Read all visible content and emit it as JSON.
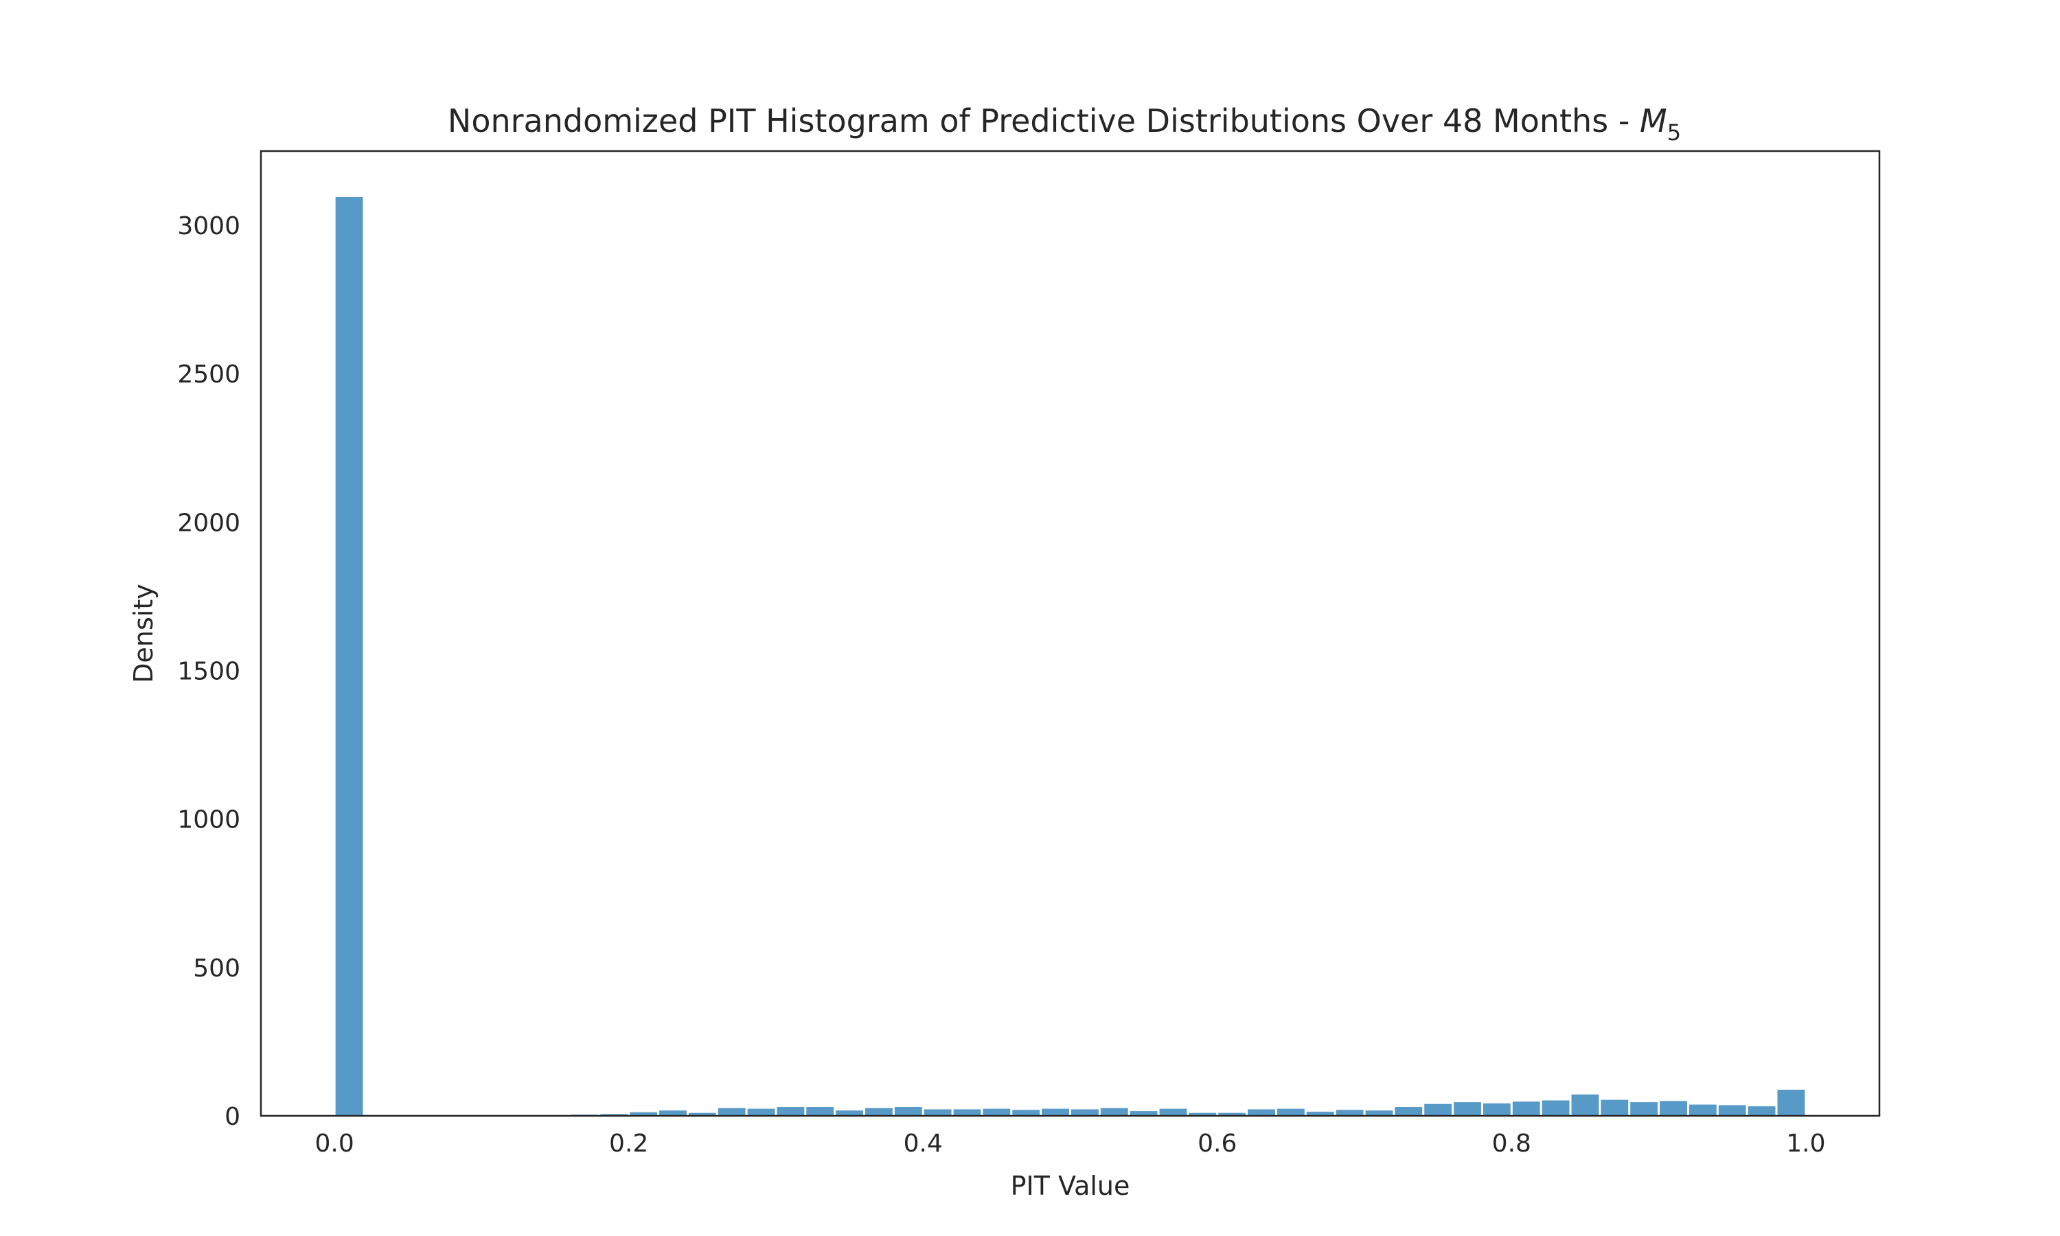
{
  "chart_data": {
    "type": "bar",
    "title": "Nonrandomized PIT Histogram of Predictive Distributions Over 48 Months - ",
    "title_math_base": "M",
    "title_math_sub": "5",
    "xlabel": "PIT Value",
    "ylabel": "Density",
    "xlim": [
      -0.05,
      1.05
    ],
    "ylim": [
      0,
      3250
    ],
    "xticks": [
      0.0,
      0.2,
      0.4,
      0.6,
      0.8,
      1.0
    ],
    "xtick_labels": [
      "0.0",
      "0.2",
      "0.4",
      "0.6",
      "0.8",
      "1.0"
    ],
    "yticks": [
      0,
      500,
      1000,
      1500,
      2000,
      2500,
      3000
    ],
    "ytick_labels": [
      "0",
      "500",
      "1000",
      "1500",
      "2000",
      "2500",
      "3000"
    ],
    "bin_width": 0.02,
    "bin_start": 0.0,
    "values": [
      3095,
      0,
      0,
      0,
      0,
      0,
      0,
      0,
      4,
      6,
      12,
      18,
      10,
      26,
      24,
      30,
      30,
      18,
      26,
      30,
      22,
      22,
      24,
      20,
      24,
      22,
      26,
      16,
      24,
      10,
      10,
      22,
      24,
      14,
      20,
      18,
      30,
      40,
      46,
      42,
      48,
      52,
      72,
      54,
      46,
      50,
      38,
      36,
      32,
      88
    ],
    "grid": false,
    "legend": "none",
    "bar_color": "#5799c7"
  }
}
